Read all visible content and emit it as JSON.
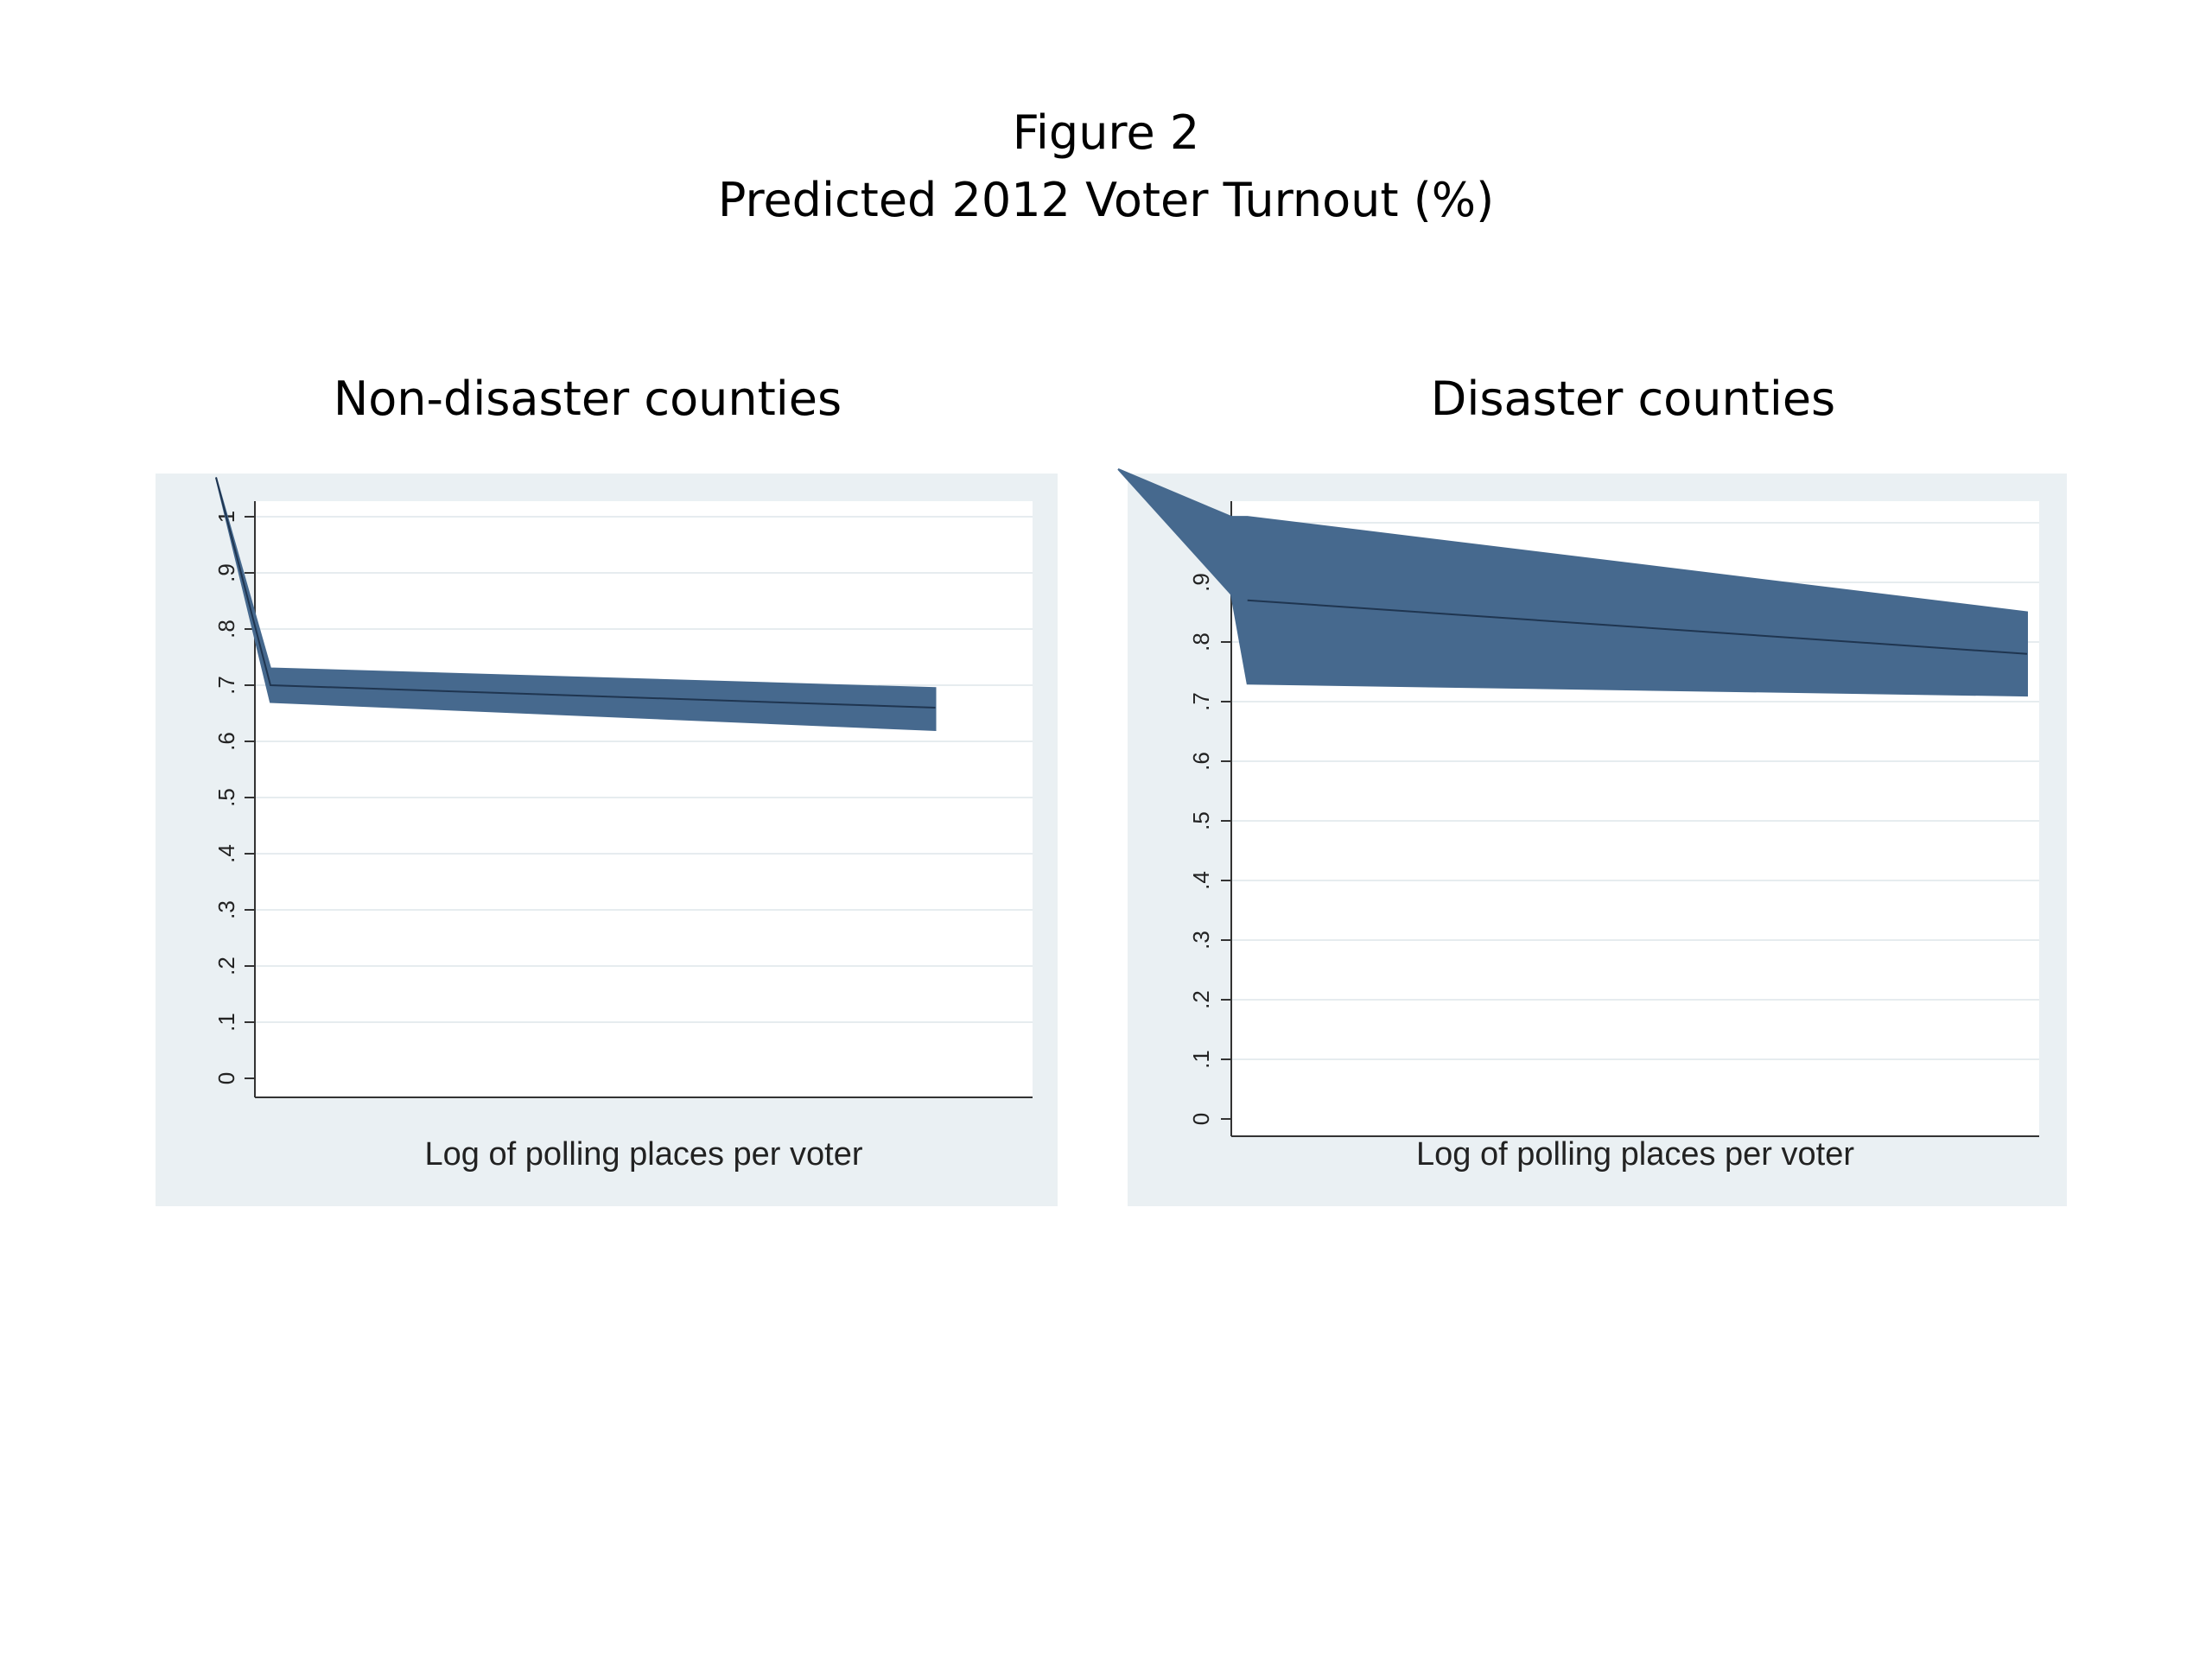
{
  "figure": {
    "title_line1": "Figure 2",
    "title_line2": "Predicted 2012 Voter Turnout (%)"
  },
  "colors": {
    "band": "#46698e",
    "line": "#1f3550",
    "panel_bg": "#eaf0f3",
    "plot_bg": "#ffffff",
    "grid": "#e6ecef"
  },
  "chart_data": [
    {
      "type": "area",
      "title": "Non-disaster counties",
      "xlabel": "Log of polling places per voter",
      "ylabel": "",
      "ylim": [
        0,
        1
      ],
      "yticks": [
        "0",
        ".1",
        ".2",
        ".3",
        ".4",
        ".5",
        ".6",
        ".7",
        ".8",
        ".9",
        "1"
      ],
      "grid": true,
      "x": [
        -0.05,
        0.02,
        0.875
      ],
      "series": [
        {
          "role": "predicted",
          "values": [
            1.07,
            0.7,
            0.66
          ]
        },
        {
          "role": "upper",
          "values": [
            1.07,
            0.73,
            0.695
          ]
        },
        {
          "role": "lower",
          "values": [
            1.07,
            0.67,
            0.62
          ]
        }
      ]
    },
    {
      "type": "area",
      "title": "Disaster counties",
      "xlabel": "Log of polling places per voter",
      "ylabel": "",
      "ylim": [
        0,
        1
      ],
      "yticks": [
        "0",
        ".1",
        ".2",
        ".3",
        ".4",
        ".5",
        ".6",
        ".7",
        ".8",
        ".9",
        "1"
      ],
      "grid": true,
      "x": [
        -0.14,
        0.0,
        0.02,
        0.985
      ],
      "series": [
        {
          "role": "predicted",
          "values": [
            null,
            null,
            0.87,
            0.78
          ]
        },
        {
          "role": "upper",
          "values": [
            1.09,
            1.01,
            1.01,
            0.85
          ]
        },
        {
          "role": "lower",
          "values": [
            1.09,
            0.88,
            0.73,
            0.71
          ]
        }
      ]
    }
  ]
}
